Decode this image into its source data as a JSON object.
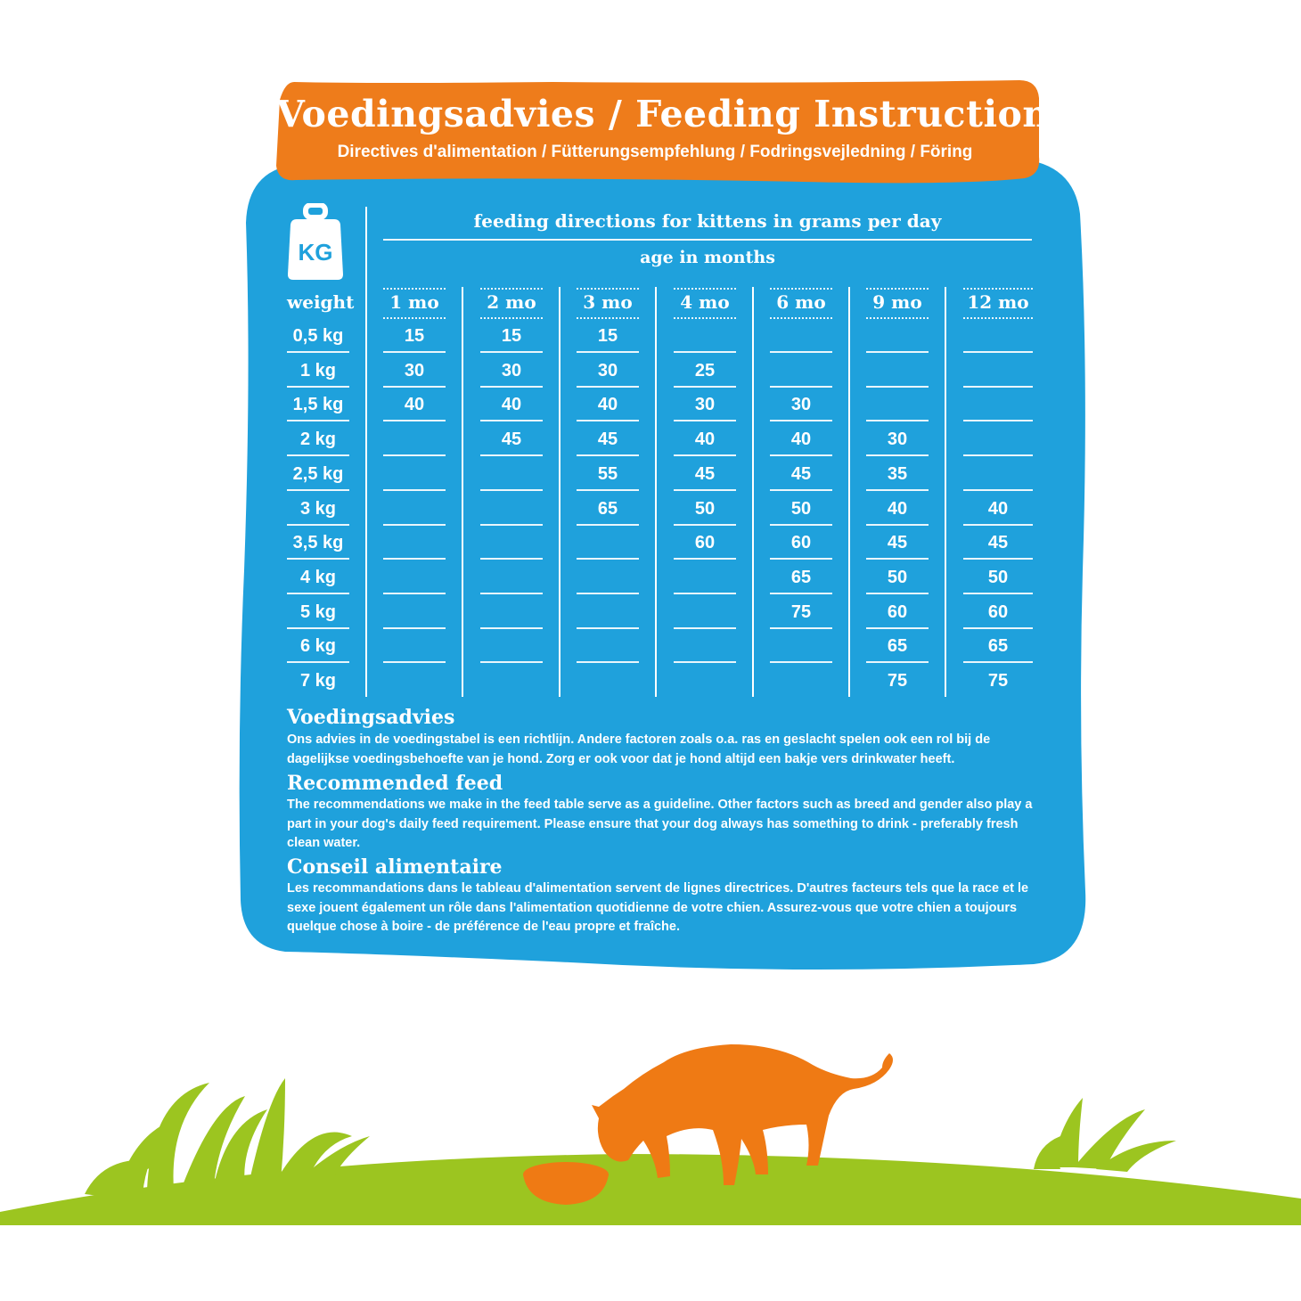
{
  "header": {
    "title": "Voedingsadvies / Feeding Instruction",
    "subtitle": "Directives d'alimentation / Fütterungsempfehlung / Fodringsvejledning / Föring"
  },
  "icon": {
    "name": "weight-kg-icon",
    "label": "KG"
  },
  "table": {
    "heading": "feeding directions for kittens in grams per day",
    "subheading": "age in months",
    "weight_header": "weight",
    "columns": [
      "1 mo",
      "2 mo",
      "3 mo",
      "4 mo",
      "6 mo",
      "9 mo",
      "12 mo"
    ],
    "rows": [
      {
        "weight": "0,5 kg",
        "values": [
          "15",
          "15",
          "15",
          "",
          "",
          "",
          ""
        ]
      },
      {
        "weight": "1 kg",
        "values": [
          "30",
          "30",
          "30",
          "25",
          "",
          "",
          ""
        ]
      },
      {
        "weight": "1,5 kg",
        "values": [
          "40",
          "40",
          "40",
          "30",
          "30",
          "",
          ""
        ]
      },
      {
        "weight": "2 kg",
        "values": [
          "",
          "45",
          "45",
          "40",
          "40",
          "30",
          ""
        ]
      },
      {
        "weight": "2,5 kg",
        "values": [
          "",
          "",
          "55",
          "45",
          "45",
          "35",
          ""
        ]
      },
      {
        "weight": "3 kg",
        "values": [
          "",
          "",
          "65",
          "50",
          "50",
          "40",
          "40"
        ]
      },
      {
        "weight": "3,5 kg",
        "values": [
          "",
          "",
          "",
          "60",
          "60",
          "45",
          "45"
        ]
      },
      {
        "weight": "4 kg",
        "values": [
          "",
          "",
          "",
          "",
          "65",
          "50",
          "50"
        ]
      },
      {
        "weight": "5 kg",
        "values": [
          "",
          "",
          "",
          "",
          "75",
          "60",
          "60"
        ]
      },
      {
        "weight": "6 kg",
        "values": [
          "",
          "",
          "",
          "",
          "",
          "65",
          "65"
        ]
      },
      {
        "weight": "7 kg",
        "values": [
          "",
          "",
          "",
          "",
          "",
          "75",
          "75"
        ]
      }
    ]
  },
  "sections": [
    {
      "title": "Voedingsadvies",
      "text": "Ons advies in de voedingstabel is een richtlijn. Andere factoren zoals o.a. ras en geslacht spelen ook een rol bij de dagelijkse voedingsbehoefte van je hond. Zorg er ook voor dat je hond altijd een bakje vers drinkwater heeft."
    },
    {
      "title": "Recommended feed",
      "text": "The recommendations we make in the feed table serve as a guideline. Other factors such as breed and gender also play a part in your dog's daily feed requirement. Please ensure that your dog always has something to drink - preferably fresh clean water."
    },
    {
      "title": "Conseil alimentaire",
      "text": "Les recommandations dans le tableau d'alimentation servent de lignes directrices. D'autres facteurs tels que la race et le sexe jouent également un rôle dans l'alimentation quotidienne de votre chien. Assurez-vous que votre chien a toujours quelque chose à boire - de préférence de l'eau propre et fraîche."
    }
  ],
  "colors": {
    "panel_blue": "#1fa1dc",
    "header_orange": "#ee7c1b",
    "grass_green": "#9cc520",
    "cat_orange": "#ef7a14"
  },
  "illustration": {
    "cat": "cat-eating-icon",
    "bowl": "food-bowl-icon",
    "grass": "grass-illustration"
  }
}
